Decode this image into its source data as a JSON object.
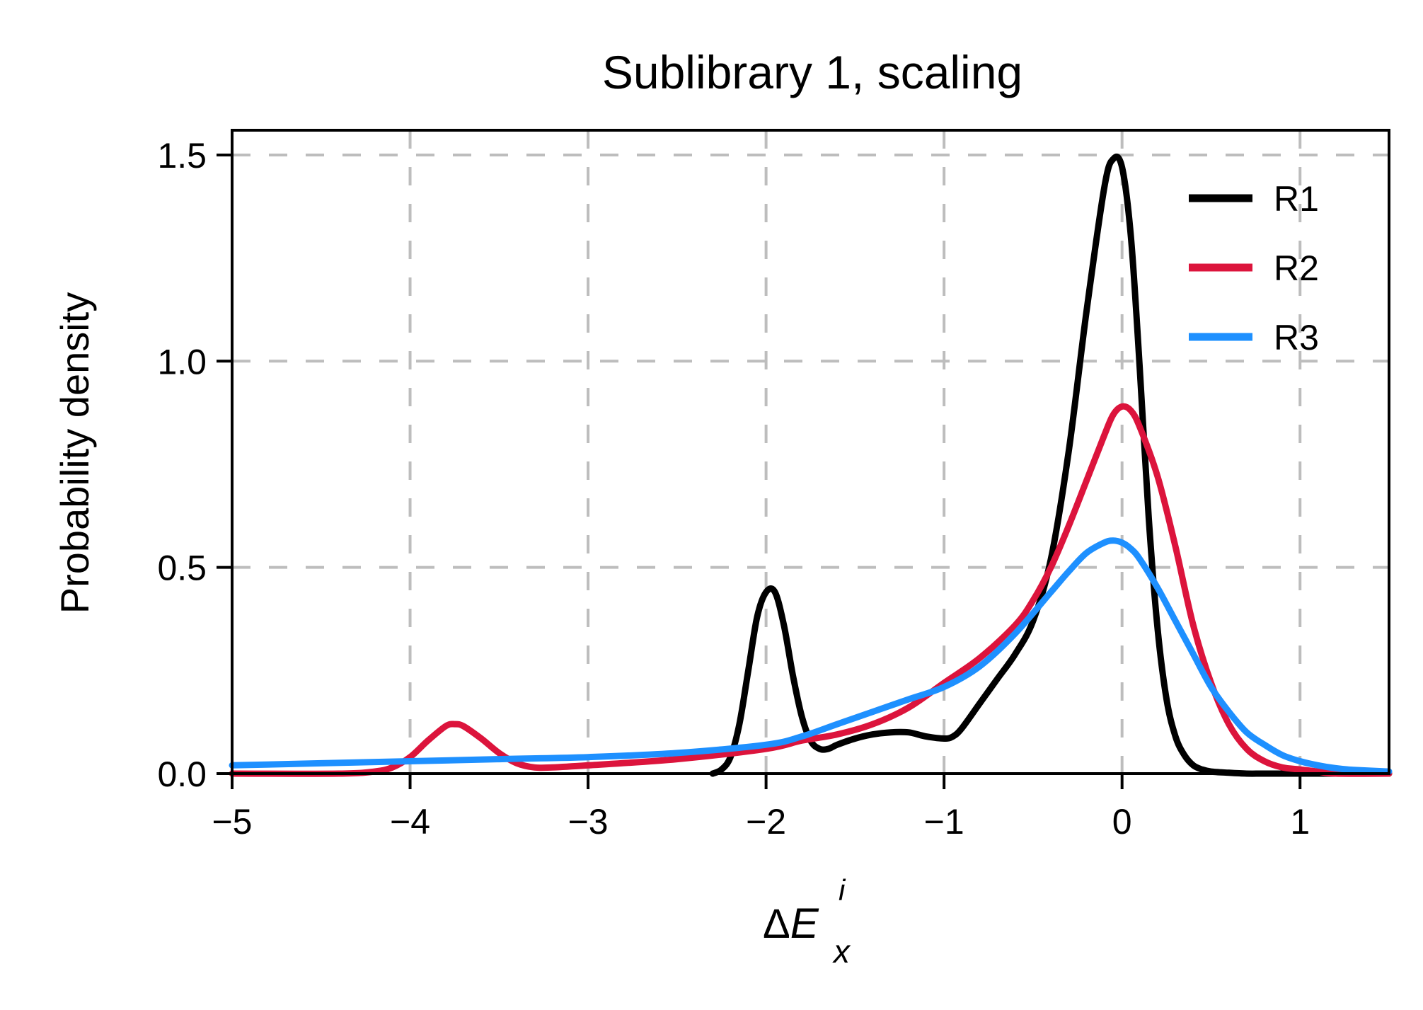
{
  "chart_data": {
    "type": "line",
    "title": "Sublibrary 1, scaling",
    "xlabel": {
      "symbol": "Δ",
      "base": "E",
      "superscript": "i",
      "subscript": "x"
    },
    "ylabel": "Probability density",
    "xlim": [
      -5,
      1.5
    ],
    "ylim": [
      0,
      1.56
    ],
    "xticks": [
      -5,
      -4,
      -3,
      -2,
      -1,
      0,
      1
    ],
    "xtick_labels": [
      "−5",
      "−4",
      "−3",
      "−2",
      "−1",
      "0",
      "1"
    ],
    "yticks": [
      0,
      0.5,
      1.0,
      1.5
    ],
    "ytick_labels": [
      "0.0",
      "0.5",
      "1.0",
      "1.5"
    ],
    "grid": true,
    "legend": "top-right",
    "series": [
      {
        "name": "R1",
        "color": "#000000",
        "x": [
          -2.3,
          -2.25,
          -2.2,
          -2.15,
          -2.1,
          -2.05,
          -2.0,
          -1.95,
          -1.9,
          -1.85,
          -1.8,
          -1.75,
          -1.7,
          -1.65,
          -1.6,
          -1.5,
          -1.4,
          -1.3,
          -1.2,
          -1.1,
          -1.0,
          -0.95,
          -0.9,
          -0.8,
          -0.7,
          -0.6,
          -0.5,
          -0.4,
          -0.3,
          -0.2,
          -0.1,
          -0.05,
          0.0,
          0.05,
          0.1,
          0.15,
          0.2,
          0.25,
          0.3,
          0.35,
          0.4,
          0.45,
          0.5,
          0.6,
          0.7,
          0.8,
          1.0,
          1.5
        ],
        "y": [
          0.0,
          0.01,
          0.04,
          0.12,
          0.25,
          0.38,
          0.44,
          0.44,
          0.36,
          0.24,
          0.14,
          0.08,
          0.06,
          0.06,
          0.07,
          0.085,
          0.095,
          0.1,
          0.1,
          0.09,
          0.085,
          0.09,
          0.11,
          0.17,
          0.23,
          0.29,
          0.37,
          0.52,
          0.78,
          1.12,
          1.42,
          1.49,
          1.47,
          1.3,
          0.98,
          0.62,
          0.35,
          0.18,
          0.09,
          0.045,
          0.02,
          0.01,
          0.005,
          0.002,
          0.0,
          0.0,
          0.0,
          0.0
        ]
      },
      {
        "name": "R2",
        "color": "#dc143c",
        "x": [
          -5,
          -4.4,
          -4.2,
          -4.1,
          -4.0,
          -3.9,
          -3.8,
          -3.75,
          -3.7,
          -3.6,
          -3.5,
          -3.4,
          -3.3,
          -3.2,
          -3.0,
          -2.5,
          -2.0,
          -1.8,
          -1.6,
          -1.4,
          -1.2,
          -1.0,
          -0.8,
          -0.6,
          -0.5,
          -0.4,
          -0.3,
          -0.2,
          -0.1,
          -0.05,
          0.0,
          0.05,
          0.1,
          0.2,
          0.3,
          0.4,
          0.5,
          0.6,
          0.7,
          0.8,
          0.9,
          1.0,
          1.1,
          1.2,
          1.5
        ],
        "y": [
          0.0,
          0.0,
          0.005,
          0.015,
          0.04,
          0.08,
          0.115,
          0.12,
          0.115,
          0.085,
          0.05,
          0.025,
          0.015,
          0.015,
          0.02,
          0.035,
          0.06,
          0.08,
          0.095,
          0.12,
          0.16,
          0.22,
          0.28,
          0.36,
          0.42,
          0.5,
          0.6,
          0.71,
          0.82,
          0.87,
          0.89,
          0.88,
          0.84,
          0.72,
          0.55,
          0.36,
          0.22,
          0.12,
          0.06,
          0.03,
          0.015,
          0.01,
          0.005,
          0.0,
          0.0
        ]
      },
      {
        "name": "R3",
        "color": "#1e90ff",
        "x": [
          -5,
          -4.5,
          -4.0,
          -3.5,
          -3.0,
          -2.5,
          -2.0,
          -1.8,
          -1.6,
          -1.4,
          -1.2,
          -1.0,
          -0.8,
          -0.6,
          -0.4,
          -0.3,
          -0.2,
          -0.1,
          -0.05,
          0.0,
          0.05,
          0.1,
          0.2,
          0.3,
          0.4,
          0.5,
          0.6,
          0.7,
          0.8,
          0.9,
          1.0,
          1.1,
          1.2,
          1.3,
          1.5
        ],
        "y": [
          0.02,
          0.025,
          0.03,
          0.035,
          0.04,
          0.05,
          0.07,
          0.09,
          0.12,
          0.15,
          0.18,
          0.21,
          0.26,
          0.34,
          0.44,
          0.49,
          0.535,
          0.56,
          0.565,
          0.56,
          0.545,
          0.52,
          0.45,
          0.37,
          0.29,
          0.21,
          0.15,
          0.1,
          0.07,
          0.045,
          0.03,
          0.02,
          0.013,
          0.009,
          0.005
        ]
      }
    ]
  }
}
